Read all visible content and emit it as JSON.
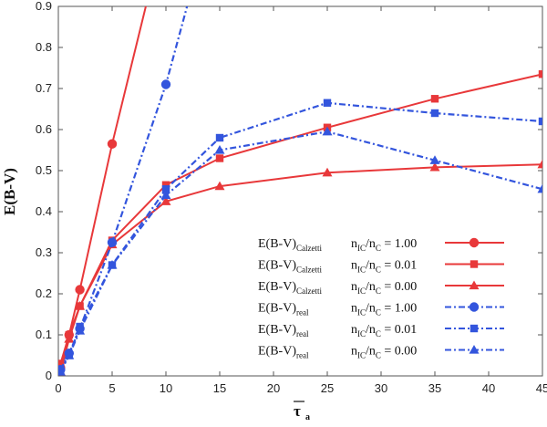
{
  "chart_data": {
    "type": "line",
    "xlabel_main": "τ",
    "xlabel_sub": "a",
    "ylabel": "E(B-V)",
    "xlim": [
      0,
      45
    ],
    "ylim": [
      0,
      0.9
    ],
    "x_ticks": [
      "0",
      "5",
      "10",
      "15",
      "20",
      "25",
      "30",
      "35",
      "40",
      "45"
    ],
    "y_ticks": [
      "0",
      "0.1",
      "0.2",
      "0.3",
      "0.4",
      "0.5",
      "0.6",
      "0.7",
      "0.8",
      "0.9"
    ],
    "grid": false,
    "legend_position": "bottom-right",
    "colors": {
      "calzetti": "#e8383a",
      "real": "#3355dd"
    },
    "series": [
      {
        "name_main": "E(B-V)",
        "name_sub": "Calzetti",
        "ratio_label": "n",
        "ratio_sub1": "IC",
        "ratio_mid": "/n",
        "ratio_sub2": "C",
        "ratio_value": " = 1.00",
        "group": "calzetti",
        "marker": "circle",
        "style": "solid",
        "points": [
          [
            0.2,
            0.02
          ],
          [
            1,
            0.1
          ],
          [
            2,
            0.21
          ],
          [
            5,
            0.565
          ],
          [
            10,
            1.1
          ]
        ]
      },
      {
        "name_main": "E(B-V)",
        "name_sub": "Calzetti",
        "ratio_label": "n",
        "ratio_sub1": "IC",
        "ratio_mid": "/n",
        "ratio_sub2": "C",
        "ratio_value": " = 0.01",
        "group": "calzetti",
        "marker": "square",
        "style": "solid",
        "points": [
          [
            0.2,
            0.03
          ],
          [
            1,
            0.1
          ],
          [
            2,
            0.17
          ],
          [
            5,
            0.33
          ],
          [
            10,
            0.465
          ],
          [
            15,
            0.53
          ],
          [
            25,
            0.605
          ],
          [
            35,
            0.675
          ],
          [
            45,
            0.735
          ]
        ]
      },
      {
        "name_main": "E(B-V)",
        "name_sub": "Calzetti",
        "ratio_label": "n",
        "ratio_sub1": "IC",
        "ratio_mid": "/n",
        "ratio_sub2": "C",
        "ratio_value": " = 0.00",
        "group": "calzetti",
        "marker": "triangle",
        "style": "solid",
        "points": [
          [
            0.2,
            0.01
          ],
          [
            1,
            0.09
          ],
          [
            2,
            0.17
          ],
          [
            5,
            0.32
          ],
          [
            10,
            0.425
          ],
          [
            15,
            0.462
          ],
          [
            25,
            0.495
          ],
          [
            35,
            0.508
          ],
          [
            45,
            0.515
          ]
        ]
      },
      {
        "name_main": "E(B-V)",
        "name_sub": "real",
        "ratio_label": "n",
        "ratio_sub1": "IC",
        "ratio_mid": "/n",
        "ratio_sub2": "C",
        "ratio_value": " = 1.00",
        "group": "real",
        "marker": "circle",
        "style": "dashdot",
        "points": [
          [
            0.2,
            0.015
          ],
          [
            1,
            0.055
          ],
          [
            2,
            0.115
          ],
          [
            5,
            0.325
          ],
          [
            10,
            0.71
          ],
          [
            13,
            1.0
          ]
        ]
      },
      {
        "name_main": "E(B-V)",
        "name_sub": "real",
        "ratio_label": "n",
        "ratio_sub1": "IC",
        "ratio_mid": "/n",
        "ratio_sub2": "C",
        "ratio_value": " = 0.01",
        "group": "real",
        "marker": "square",
        "style": "dashdot",
        "points": [
          [
            0.2,
            0.012
          ],
          [
            1,
            0.05
          ],
          [
            2,
            0.12
          ],
          [
            5,
            0.27
          ],
          [
            10,
            0.455
          ],
          [
            15,
            0.58
          ],
          [
            25,
            0.665
          ],
          [
            35,
            0.64
          ],
          [
            45,
            0.62
          ]
        ]
      },
      {
        "name_main": "E(B-V)",
        "name_sub": "real",
        "ratio_label": "n",
        "ratio_sub1": "IC",
        "ratio_mid": "/n",
        "ratio_sub2": "C",
        "ratio_value": " = 0.00",
        "group": "real",
        "marker": "triangle",
        "style": "dashdot",
        "points": [
          [
            0.2,
            0.01
          ],
          [
            1,
            0.05
          ],
          [
            2,
            0.11
          ],
          [
            5,
            0.27
          ],
          [
            10,
            0.44
          ],
          [
            15,
            0.55
          ],
          [
            25,
            0.595
          ],
          [
            35,
            0.525
          ],
          [
            45,
            0.455
          ]
        ]
      }
    ]
  }
}
